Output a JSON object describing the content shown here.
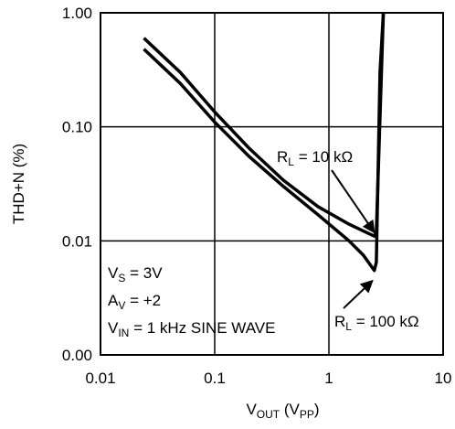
{
  "chart_data": {
    "type": "line",
    "xlabel": "VOUT (VPP)",
    "xlabel_main": "V",
    "xlabel_sub": "OUT",
    "xlabel_unit_open": " (V",
    "xlabel_unit_sub": "PP",
    "xlabel_unit_close": ")",
    "ylabel": "THD+N (%)",
    "x_scale": "log",
    "y_scale": "log",
    "xlim": [
      0.01,
      10
    ],
    "ylim": [
      0.001,
      1.0
    ],
    "x_ticks": [
      {
        "value": 0.01,
        "label": "0.01"
      },
      {
        "value": 0.1,
        "label": "0.1"
      },
      {
        "value": 1,
        "label": "1"
      },
      {
        "value": 10,
        "label": "10"
      }
    ],
    "y_ticks": [
      {
        "value": 0.001,
        "label": "0.00"
      },
      {
        "value": 0.01,
        "label": "0.01"
      },
      {
        "value": 0.1,
        "label": "0.10"
      },
      {
        "value": 1.0,
        "label": "1.00"
      }
    ],
    "grid": true,
    "series": [
      {
        "name": "RL = 10 kΩ",
        "points": [
          [
            0.024,
            0.6
          ],
          [
            0.05,
            0.3
          ],
          [
            0.1,
            0.135
          ],
          [
            0.2,
            0.065
          ],
          [
            0.4,
            0.034
          ],
          [
            0.8,
            0.02
          ],
          [
            1.5,
            0.014
          ],
          [
            2.5,
            0.011
          ],
          [
            2.6,
            0.012
          ],
          [
            3.0,
            1.0
          ]
        ]
      },
      {
        "name": "RL = 100 kΩ",
        "points": [
          [
            0.024,
            0.48
          ],
          [
            0.05,
            0.24
          ],
          [
            0.1,
            0.11
          ],
          [
            0.2,
            0.055
          ],
          [
            0.4,
            0.03
          ],
          [
            0.8,
            0.017
          ],
          [
            1.5,
            0.01
          ],
          [
            2.0,
            0.0075
          ],
          [
            2.5,
            0.0055
          ],
          [
            2.6,
            0.0065
          ],
          [
            2.8,
            0.3
          ],
          [
            3.0,
            1.0
          ]
        ]
      }
    ],
    "annotations": [
      {
        "name": "RL = 10 kΩ",
        "main": "R",
        "sub": "L",
        "rest": " = 10 kΩ",
        "arrow_to": [
          2.5,
          0.011
        ]
      },
      {
        "name": "RL = 100 kΩ",
        "main": "R",
        "sub": "L",
        "rest": " = 100 kΩ",
        "arrow_to": [
          2.5,
          0.0058
        ]
      }
    ],
    "conditions": [
      {
        "main": "V",
        "sub": "S",
        "rest": " = 3V"
      },
      {
        "main": "A",
        "sub": "V",
        "rest": " = +2"
      },
      {
        "main": "V",
        "sub": "IN",
        "rest": " = 1 kHz SINE WAVE"
      }
    ]
  }
}
